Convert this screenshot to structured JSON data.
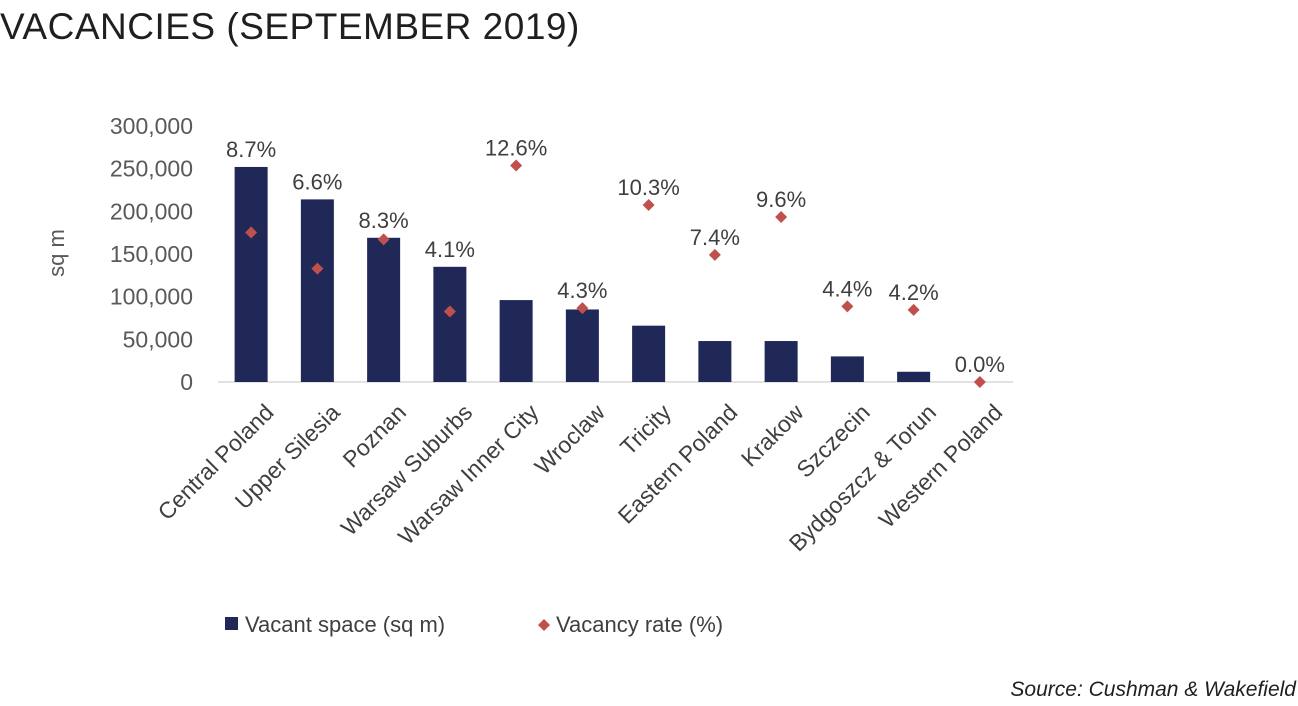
{
  "title": "VACANCIES (SEPTEMBER 2019)",
  "source": "Source: Cushman & Wakefield",
  "chart_data": {
    "type": "bar",
    "ylabel": "sq m",
    "ylim": [
      0,
      300000
    ],
    "y_ticks": [
      0,
      50000,
      100000,
      150000,
      200000,
      250000,
      300000
    ],
    "y_tick_labels": [
      "0",
      "50,000",
      "100,000",
      "150,000",
      "200,000",
      "250,000",
      "300,000"
    ],
    "categories": [
      "Central Poland",
      "Upper Silesia",
      "Poznan",
      "Warsaw Suburbs",
      "Warsaw Inner City",
      "Wroclaw",
      "Tricity",
      "Eastern Poland",
      "Krakow",
      "Szczecin",
      "Bydgoszcz & Torun",
      "Western Poland"
    ],
    "series": [
      {
        "name": "Vacant space (sq m)",
        "type": "bar",
        "color": "#1f2857",
        "values": [
          252000,
          214000,
          169000,
          135000,
          96000,
          85000,
          66000,
          48000,
          48000,
          30000,
          12000,
          0
        ]
      },
      {
        "name": "Vacancy rate (%)",
        "type": "scatter",
        "marker": "diamond",
        "color": "#c0504d",
        "values": [
          8.7,
          6.6,
          8.3,
          4.1,
          12.6,
          4.3,
          10.3,
          7.4,
          9.6,
          4.4,
          4.2,
          0.0
        ],
        "labels": [
          "8.7%",
          "6.6%",
          "8.3%",
          "4.1%",
          "12.6%",
          "4.3%",
          "10.3%",
          "7.4%",
          "9.6%",
          "4.4%",
          "4.2%",
          "0.0%"
        ]
      }
    ],
    "legend_position": "bottom",
    "grid": false
  }
}
